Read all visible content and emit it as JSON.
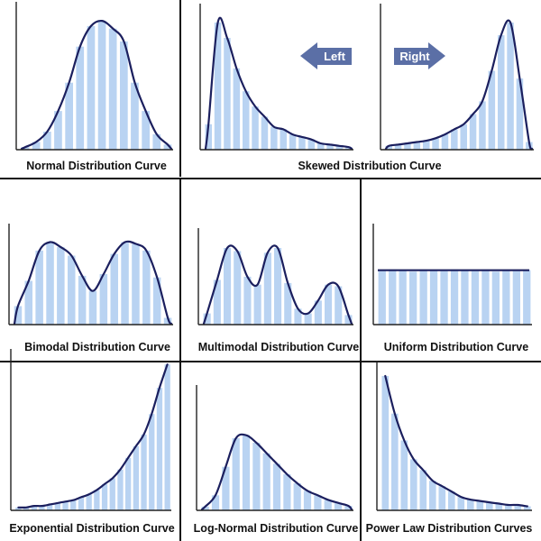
{
  "colors": {
    "bar": "#b9d3f2",
    "curve": "#1b1f5e",
    "axis": "#222222",
    "divider": "#111111",
    "arrow": "#5b6fa6",
    "caption": "#111111"
  },
  "arrows": {
    "left_label": "Left",
    "right_label": "Right"
  },
  "panels": [
    {
      "caption": "Normal Distribution Curve",
      "chart_data": {
        "type": "bar",
        "curve": "normal",
        "values": [
          0.02,
          0.06,
          0.14,
          0.3,
          0.52,
          0.8,
          0.96,
          1.0,
          0.94,
          0.84,
          0.52,
          0.3,
          0.12,
          0.04
        ],
        "ylim": [
          0,
          1.05
        ]
      }
    },
    {
      "caption": "",
      "chart_data": {
        "type": "bar",
        "curve": "right-skewed",
        "values": [
          0.2,
          1.0,
          0.88,
          0.64,
          0.46,
          0.34,
          0.26,
          0.18,
          0.16,
          0.12,
          0.1,
          0.08,
          0.05,
          0.04,
          0.03,
          0.02
        ],
        "ylim": [
          0,
          1.05
        ]
      }
    },
    {
      "caption": "",
      "chart_data": {
        "type": "bar",
        "curve": "left-skewed",
        "values": [
          0.03,
          0.04,
          0.05,
          0.06,
          0.07,
          0.09,
          0.12,
          0.16,
          0.2,
          0.28,
          0.38,
          0.62,
          0.9,
          1.0,
          0.56,
          0.06
        ],
        "ylim": [
          0,
          1.05
        ]
      }
    },
    {
      "caption": "Bimodal Distribution Curve",
      "chart_data": {
        "type": "bar",
        "curve": "bimodal",
        "values": [
          0.22,
          0.52,
          0.88,
          0.98,
          0.92,
          0.82,
          0.58,
          0.4,
          0.6,
          0.84,
          0.98,
          0.96,
          0.88,
          0.56,
          0.08
        ],
        "ylim": [
          0,
          1.05
        ]
      }
    },
    {
      "caption": "Multimodal Distribution Curve",
      "chart_data": {
        "type": "bar",
        "curve": "multimodal",
        "values": [
          0.14,
          0.56,
          0.96,
          0.92,
          0.6,
          0.5,
          0.9,
          0.96,
          0.52,
          0.2,
          0.14,
          0.3,
          0.5,
          0.48,
          0.12
        ],
        "ylim": [
          0,
          1.05
        ]
      }
    },
    {
      "caption": "Uniform Distribution Curve",
      "chart_data": {
        "type": "bar",
        "curve": "uniform",
        "values": [
          0.97,
          1.0,
          0.98,
          0.96,
          1.0,
          0.98,
          0.97,
          1.0,
          0.98,
          0.97,
          1.0,
          0.96,
          0.98,
          0.97,
          0.99
        ],
        "ylim": [
          0,
          1.6
        ]
      }
    },
    {
      "caption": "Exponential Distribution Curve",
      "chart_data": {
        "type": "bar",
        "curve": "exponential",
        "values": [
          0.02,
          0.02,
          0.03,
          0.03,
          0.04,
          0.05,
          0.06,
          0.07,
          0.09,
          0.11,
          0.14,
          0.18,
          0.22,
          0.28,
          0.36,
          0.44,
          0.52,
          0.66,
          0.84,
          1.0
        ],
        "ylim": [
          0,
          1.02
        ]
      }
    },
    {
      "caption": "Log-Normal Distribution Curve",
      "chart_data": {
        "type": "bar",
        "curve": "log-normal",
        "values": [
          0.05,
          0.2,
          0.58,
          0.96,
          1.0,
          0.9,
          0.76,
          0.62,
          0.48,
          0.36,
          0.26,
          0.2,
          0.14,
          0.1,
          0.06
        ],
        "ylim": [
          0,
          1.5
        ]
      }
    },
    {
      "caption": "Power Law Distribution Curves",
      "chart_data": {
        "type": "bar",
        "curve": "power-law",
        "values": [
          1.0,
          0.72,
          0.52,
          0.38,
          0.3,
          0.22,
          0.18,
          0.14,
          0.1,
          0.08,
          0.07,
          0.06,
          0.05,
          0.04,
          0.04,
          0.03
        ],
        "ylim": [
          0,
          1.02
        ]
      }
    }
  ],
  "shared_caption": "Skewed Distribution Curve"
}
